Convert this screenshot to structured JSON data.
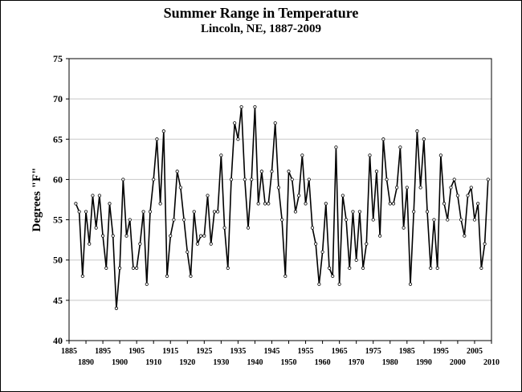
{
  "chart_data": {
    "type": "line",
    "title": "Summer Range in Temperature",
    "subtitle": "Lincoln, NE, 1887-2009",
    "xlabel": "",
    "ylabel": "Degrees \"F\"",
    "ylim": [
      40,
      75
    ],
    "yticks": [
      40,
      45,
      50,
      55,
      60,
      65,
      70,
      75
    ],
    "xlim": [
      1885,
      2010
    ],
    "xticks_upper": [
      "1885",
      "1895",
      "1905",
      "1915",
      "1925",
      "1935",
      "1945",
      "1955",
      "1965",
      "1975",
      "1985",
      "1995",
      "2005"
    ],
    "xticks_lower": [
      "1890",
      "1900",
      "1910",
      "1920",
      "1930",
      "1940",
      "1950",
      "1960",
      "1970",
      "1980",
      "1990",
      "2000",
      "2010"
    ],
    "grid": true,
    "legend": "none",
    "line_color": "#000000",
    "x": [
      1887,
      1888,
      1889,
      1890,
      1891,
      1892,
      1893,
      1894,
      1895,
      1896,
      1897,
      1898,
      1899,
      1900,
      1901,
      1902,
      1903,
      1904,
      1905,
      1906,
      1907,
      1908,
      1909,
      1910,
      1911,
      1912,
      1913,
      1914,
      1915,
      1916,
      1917,
      1918,
      1919,
      1920,
      1921,
      1922,
      1923,
      1924,
      1925,
      1926,
      1927,
      1928,
      1929,
      1930,
      1931,
      1932,
      1933,
      1934,
      1935,
      1936,
      1937,
      1938,
      1939,
      1940,
      1941,
      1942,
      1943,
      1944,
      1945,
      1946,
      1947,
      1948,
      1949,
      1950,
      1951,
      1952,
      1953,
      1954,
      1955,
      1956,
      1957,
      1958,
      1959,
      1960,
      1961,
      1962,
      1963,
      1964,
      1965,
      1966,
      1967,
      1968,
      1969,
      1970,
      1971,
      1972,
      1973,
      1974,
      1975,
      1976,
      1977,
      1978,
      1979,
      1980,
      1981,
      1982,
      1983,
      1984,
      1985,
      1986,
      1987,
      1988,
      1989,
      1990,
      1991,
      1992,
      1993,
      1994,
      1995,
      1996,
      1997,
      1998,
      1999,
      2000,
      2001,
      2002,
      2003,
      2004,
      2005,
      2006,
      2007,
      2008,
      2009
    ],
    "values": [
      57,
      56,
      48,
      56,
      52,
      58,
      54,
      58,
      53,
      49,
      57,
      53,
      44,
      49,
      60,
      53,
      55,
      49,
      49,
      52,
      56,
      47,
      56,
      60,
      65,
      57,
      66,
      48,
      53,
      55,
      61,
      59,
      55,
      51,
      48,
      56,
      52,
      53,
      53,
      58,
      52,
      56,
      56,
      63,
      54,
      49,
      60,
      67,
      65,
      69,
      60,
      54,
      60,
      69,
      57,
      61,
      57,
      57,
      61,
      67,
      59,
      55,
      48,
      61,
      60,
      56,
      58,
      63,
      57,
      60,
      54,
      52,
      47,
      51,
      57,
      49,
      48,
      64,
      47,
      58,
      55,
      49,
      56,
      50,
      56,
      49,
      52,
      63,
      55,
      61,
      53,
      65,
      60,
      57,
      57,
      59,
      64,
      54,
      59,
      47,
      56,
      66,
      59,
      65,
      56,
      49,
      55,
      49,
      63,
      57,
      55,
      59,
      60,
      58,
      55,
      53,
      58,
      59,
      55,
      57,
      49,
      52,
      60
    ]
  }
}
